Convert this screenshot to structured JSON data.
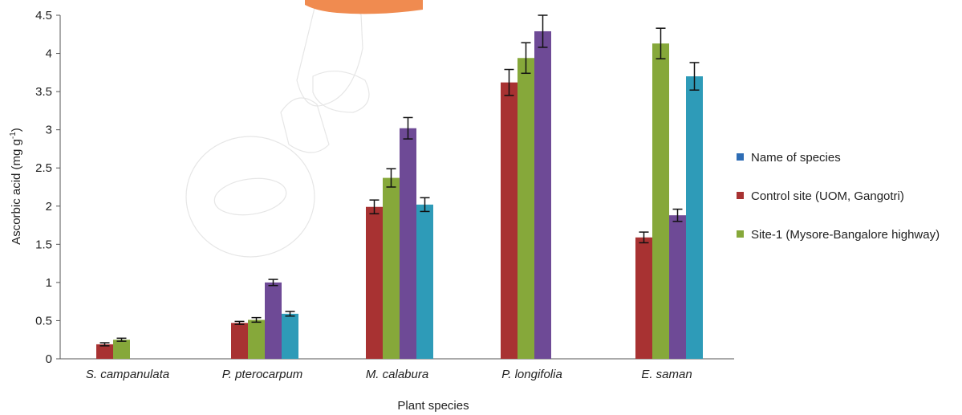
{
  "chart_data": {
    "type": "bar",
    "xlabel": "Plant species",
    "ylabel": "Ascorbic acid (mg g",
    "ylabel_superscript": "-1",
    "ylabel_close": ")",
    "ylim": [
      0,
      4.5
    ],
    "yticks": [
      "0",
      "0.5",
      "1",
      "1.5",
      "2",
      "2.5",
      "3",
      "3.5",
      "4",
      "4.5"
    ],
    "ytick_values": [
      0,
      0.5,
      1,
      1.5,
      2,
      2.5,
      3,
      3.5,
      4,
      4.5
    ],
    "grid": false,
    "legend_position": "right",
    "categories": [
      "S. campanulata",
      "P. pterocarpum",
      "M. calabura",
      "P. longifolia",
      "E. saman"
    ],
    "series": [
      {
        "name": "Control site (UOM, Gangotri)",
        "color": "#a83232",
        "values": [
          0.19,
          0.47,
          1.99,
          3.62,
          1.59
        ],
        "errors": [
          0.02,
          0.02,
          0.09,
          0.17,
          0.07
        ]
      },
      {
        "name": "Site-1 (Mysore-Bangalore highway)",
        "color": "#86a83a",
        "values": [
          0.25,
          0.51,
          2.37,
          3.94,
          4.13
        ],
        "errors": [
          0.02,
          0.03,
          0.12,
          0.2,
          0.2
        ]
      },
      {
        "name": "",
        "color": "#6e4a96",
        "values": [
          null,
          1.0,
          3.02,
          4.29,
          1.88
        ],
        "errors": [
          null,
          0.04,
          0.14,
          0.21,
          0.08
        ]
      },
      {
        "name": "",
        "color": "#2e9bb8",
        "values": [
          null,
          0.59,
          2.02,
          null,
          3.7
        ],
        "errors": [
          null,
          0.03,
          0.09,
          null,
          0.18
        ]
      }
    ],
    "legend": [
      {
        "label": "Name of species",
        "color": "#2e6db5"
      },
      {
        "label": "Control site (UOM, Gangotri)",
        "color": "#a83232"
      },
      {
        "label": "Site-1 (Mysore-Bangalore highway)",
        "color": "#86a83a"
      }
    ]
  }
}
